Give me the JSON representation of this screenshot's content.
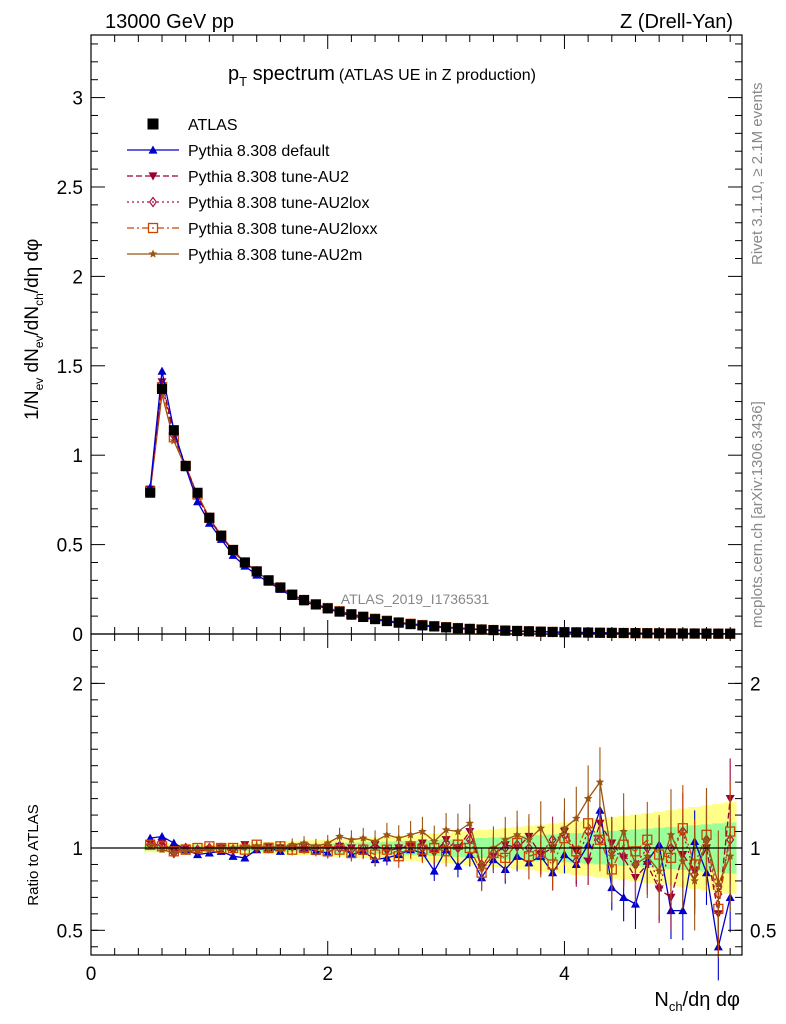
{
  "header": {
    "left": "13000 GeV pp",
    "right": "Z (Drell-Yan)"
  },
  "side_text": {
    "upper": "Rivet 3.1.10, ≥ 2.1M events",
    "lower": "mcplots.cern.ch [arXiv:1306.3436]"
  },
  "watermark": "ATLAS_2019_I1736531",
  "chart_data": [
    {
      "type": "line",
      "title_main": "p",
      "title_sub": "T",
      "title_rest": " spectrum",
      "title_paren": "(ATLAS UE in Z production)",
      "ylabel": "1/N_ev dN_ev/dN_ch/dη dφ",
      "xlim": [
        0,
        5.5
      ],
      "ylim": [
        0,
        3.35
      ],
      "yticks": [
        "0",
        "0.5",
        "1",
        "1.5",
        "2",
        "2.5",
        "3"
      ],
      "ytick_values": [
        0,
        0.5,
        1,
        1.5,
        2,
        2.5,
        3
      ],
      "legend": [
        {
          "label": "ATLAS",
          "color": "#000000",
          "marker": "square-filled",
          "dash": "none"
        },
        {
          "label": "Pythia 8.308 default",
          "color": "#0000cc",
          "marker": "triangle-up-filled",
          "dash": "solid"
        },
        {
          "label": "Pythia 8.308 tune-AU2",
          "color": "#990033",
          "marker": "triangle-down-filled",
          "dash": "dashed"
        },
        {
          "label": "Pythia 8.308 tune-AU2lox",
          "color": "#aa1144",
          "marker": "diamond-open",
          "dash": "dotted"
        },
        {
          "label": "Pythia 8.308 tune-AU2loxx",
          "color": "#cc4400",
          "marker": "square-open",
          "dash": "dashdot"
        },
        {
          "label": "Pythia 8.308 tune-AU2m",
          "color": "#995511",
          "marker": "star",
          "dash": "solid"
        }
      ],
      "x": [
        0.5,
        0.6,
        0.7,
        0.8,
        0.9,
        1.0,
        1.1,
        1.2,
        1.3,
        1.4,
        1.5,
        1.6,
        1.7,
        1.8,
        1.9,
        2.0,
        2.1,
        2.2,
        2.3,
        2.4,
        2.5,
        2.6,
        2.7,
        2.8,
        2.9,
        3.0,
        3.1,
        3.2,
        3.3,
        3.4,
        3.5,
        3.6,
        3.7,
        3.8,
        3.9,
        4.0,
        4.1,
        4.2,
        4.3,
        4.4,
        4.5,
        4.6,
        4.7,
        4.8,
        4.9,
        5.0,
        5.1,
        5.2,
        5.3,
        5.4
      ],
      "series": [
        {
          "name": "ATLAS",
          "values": [
            0.79,
            1.37,
            1.14,
            0.94,
            0.79,
            0.65,
            0.55,
            0.47,
            0.4,
            0.35,
            0.3,
            0.26,
            0.22,
            0.19,
            0.165,
            0.143,
            0.125,
            0.109,
            0.095,
            0.083,
            0.072,
            0.063,
            0.055,
            0.048,
            0.042,
            0.037,
            0.032,
            0.028,
            0.025,
            0.022,
            0.019,
            0.017,
            0.015,
            0.013,
            0.0115,
            0.01,
            0.009,
            0.008,
            0.007,
            0.0062,
            0.0055,
            0.0048,
            0.0043,
            0.0038,
            0.0033,
            0.0029,
            0.0026,
            0.0023,
            0.002,
            0.0018
          ]
        },
        {
          "name": "Pythia 8.308 default",
          "values": [
            0.82,
            1.47,
            1.14,
            0.93,
            0.74,
            0.62,
            0.53,
            0.44,
            0.38,
            0.33,
            0.29,
            0.25,
            0.21,
            0.18,
            0.16,
            0.14,
            0.12,
            0.1,
            0.09,
            0.08,
            0.07,
            0.06,
            0.053,
            0.046,
            0.04,
            0.035,
            0.031,
            0.027,
            0.024,
            0.021,
            0.018,
            0.016,
            0.014,
            0.012,
            0.011,
            0.0095,
            0.0085,
            0.0075,
            0.0066,
            0.0058,
            0.0051,
            0.0045,
            0.004,
            0.0035,
            0.0031,
            0.0027,
            0.0024,
            0.0021,
            0.0019,
            0.0017
          ]
        },
        {
          "name": "Pythia 8.308 tune-AU2",
          "values": [
            0.81,
            1.41,
            1.12,
            0.94,
            0.77,
            0.64,
            0.55,
            0.46,
            0.4,
            0.35,
            0.3,
            0.26,
            0.22,
            0.19,
            0.165,
            0.144,
            0.126,
            0.11,
            0.096,
            0.084,
            0.073,
            0.064,
            0.056,
            0.049,
            0.043,
            0.038,
            0.033,
            0.029,
            0.025,
            0.022,
            0.019,
            0.017,
            0.015,
            0.013,
            0.0115,
            0.01,
            0.009,
            0.008,
            0.007,
            0.0062,
            0.0055,
            0.0048,
            0.0043,
            0.0038,
            0.0033,
            0.0029,
            0.0026,
            0.0023,
            0.002,
            0.0018
          ]
        },
        {
          "name": "Pythia 8.308 tune-AU2lox",
          "values": [
            0.81,
            1.4,
            1.11,
            0.94,
            0.77,
            0.65,
            0.55,
            0.46,
            0.4,
            0.35,
            0.3,
            0.26,
            0.22,
            0.19,
            0.165,
            0.144,
            0.126,
            0.11,
            0.096,
            0.084,
            0.073,
            0.064,
            0.056,
            0.049,
            0.043,
            0.038,
            0.033,
            0.029,
            0.025,
            0.022,
            0.019,
            0.017,
            0.015,
            0.013,
            0.0115,
            0.01,
            0.009,
            0.008,
            0.007,
            0.0062,
            0.0055,
            0.0048,
            0.0043,
            0.0038,
            0.0033,
            0.0029,
            0.0026,
            0.0023,
            0.002,
            0.0018
          ]
        },
        {
          "name": "Pythia 8.308 tune-AU2loxx",
          "values": [
            0.8,
            1.38,
            1.1,
            0.94,
            0.78,
            0.65,
            0.55,
            0.47,
            0.4,
            0.35,
            0.3,
            0.26,
            0.22,
            0.19,
            0.166,
            0.145,
            0.127,
            0.111,
            0.097,
            0.085,
            0.074,
            0.065,
            0.057,
            0.05,
            0.044,
            0.038,
            0.033,
            0.029,
            0.025,
            0.022,
            0.019,
            0.017,
            0.015,
            0.013,
            0.0115,
            0.01,
            0.009,
            0.008,
            0.007,
            0.0062,
            0.0055,
            0.0048,
            0.0043,
            0.0038,
            0.0033,
            0.0029,
            0.0026,
            0.0023,
            0.002,
            0.0018
          ]
        },
        {
          "name": "Pythia 8.308 tune-AU2m",
          "values": [
            0.8,
            1.34,
            1.08,
            0.93,
            0.78,
            0.65,
            0.55,
            0.47,
            0.4,
            0.35,
            0.3,
            0.26,
            0.22,
            0.19,
            0.167,
            0.146,
            0.128,
            0.112,
            0.098,
            0.086,
            0.075,
            0.066,
            0.058,
            0.051,
            0.045,
            0.039,
            0.034,
            0.03,
            0.026,
            0.023,
            0.02,
            0.018,
            0.016,
            0.014,
            0.012,
            0.0105,
            0.0093,
            0.0083,
            0.0073,
            0.0064,
            0.0056,
            0.0049,
            0.0044,
            0.0039,
            0.0034,
            0.003,
            0.0027,
            0.0024,
            0.0021,
            0.0019
          ]
        }
      ]
    },
    {
      "type": "line",
      "ylabel": "Ratio to ATLAS",
      "xlabel": "N_ch/dη dφ",
      "xlim": [
        0,
        5.5
      ],
      "ylim": [
        0.35,
        2.3
      ],
      "xticks": [
        "0",
        "2",
        "4"
      ],
      "xtick_values": [
        0,
        2,
        4
      ],
      "yticks": [
        "0.5",
        "1",
        "2"
      ],
      "ytick_values": [
        0.5,
        1,
        2
      ],
      "band_colors": {
        "inner": "#99ff99",
        "outer": "#ffff88"
      },
      "x": [
        0.5,
        0.6,
        0.7,
        0.8,
        0.9,
        1.0,
        1.1,
        1.2,
        1.3,
        1.4,
        1.5,
        1.6,
        1.7,
        1.8,
        1.9,
        2.0,
        2.1,
        2.2,
        2.3,
        2.4,
        2.5,
        2.6,
        2.7,
        2.8,
        2.9,
        3.0,
        3.1,
        3.2,
        3.3,
        3.4,
        3.5,
        3.6,
        3.7,
        3.8,
        3.9,
        4.0,
        4.1,
        4.2,
        4.3,
        4.4,
        4.5,
        4.6,
        4.7,
        4.8,
        4.9,
        5.0,
        5.1,
        5.2,
        5.3,
        5.4
      ],
      "series": [
        {
          "name": "Pythia 8.308 default",
          "values": [
            1.06,
            1.07,
            1.03,
            0.99,
            0.96,
            0.97,
            0.98,
            0.95,
            0.94,
            0.99,
            1.0,
            0.98,
            1.01,
            1.0,
            0.98,
            0.97,
            1.02,
            0.96,
            0.98,
            0.93,
            0.94,
            0.96,
            0.99,
            0.97,
            0.86,
            0.99,
            0.89,
            0.96,
            0.82,
            0.93,
            0.87,
            0.95,
            0.91,
            0.95,
            0.85,
            0.96,
            0.9,
            1.02,
            1.23,
            0.76,
            0.7,
            0.66,
            0.92,
            1.02,
            0.62,
            0.62,
            1.04,
            0.85,
            0.4,
            0.7
          ]
        },
        {
          "name": "Pythia 8.308 tune-AU2",
          "values": [
            1.03,
            1.03,
            0.98,
            1.0,
            0.98,
            0.99,
            1.0,
            0.98,
            1.02,
            1.0,
            1.01,
            1.0,
            1.0,
            1.01,
            1.0,
            1.0,
            1.01,
            1.0,
            0.98,
            1.02,
            0.98,
            1.0,
            1.01,
            1.03,
            0.97,
            1.05,
            1.0,
            1.1,
            0.88,
            0.95,
            1.02,
            1.0,
            1.07,
            0.96,
            1.0,
            1.1,
            0.98,
            0.92,
            1.15,
            1.03,
            0.94,
            0.82,
            0.9,
            0.75,
            0.7,
            0.96,
            0.86,
            1.0,
            0.6,
            1.3
          ]
        },
        {
          "name": "Pythia 8.308 tune-AU2lox",
          "values": [
            1.02,
            1.02,
            0.97,
            1.0,
            0.99,
            1.0,
            1.0,
            0.99,
            1.01,
            1.0,
            1.0,
            1.0,
            1.01,
            1.0,
            1.0,
            1.01,
            1.0,
            0.99,
            1.0,
            1.01,
            0.99,
            1.0,
            1.02,
            1.0,
            0.98,
            1.03,
            1.0,
            1.05,
            0.9,
            0.97,
            1.0,
            1.02,
            1.0,
            0.97,
            1.05,
            1.08,
            0.92,
            1.1,
            1.05,
            0.98,
            0.95,
            0.9,
            1.0,
            0.76,
            1.0,
            1.1,
            0.84,
            1.05,
            0.72,
            1.05
          ]
        },
        {
          "name": "Pythia 8.308 tune-AU2loxx",
          "values": [
            1.02,
            1.01,
            0.98,
            0.99,
            1.0,
            1.01,
            1.0,
            1.0,
            0.99,
            1.02,
            1.0,
            1.01,
            0.99,
            1.0,
            0.99,
            0.98,
            0.99,
            0.97,
            0.99,
            0.96,
            0.99,
            0.95,
            1.01,
            0.99,
            1.0,
            0.98,
            1.02,
            1.0,
            0.85,
            0.97,
            0.94,
            1.03,
            0.95,
            0.97,
            0.9,
            1.06,
            0.98,
            1.15,
            1.05,
            0.87,
            1.02,
            0.98,
            1.05,
            0.96,
            0.94,
            1.12,
            0.9,
            1.08,
            0.63,
            1.1
          ]
        },
        {
          "name": "Pythia 8.308 tune-AU2m",
          "values": [
            1.02,
            0.99,
            0.97,
            0.98,
            0.99,
            0.99,
            1.0,
            1.0,
            1.01,
            1.01,
            1.0,
            1.0,
            1.02,
            1.03,
            1.01,
            1.03,
            1.07,
            1.05,
            1.06,
            1.04,
            1.08,
            1.06,
            1.08,
            1.1,
            1.04,
            1.11,
            1.1,
            1.15,
            0.88,
            1.0,
            1.05,
            1.08,
            1.05,
            1.12,
            0.99,
            1.12,
            1.18,
            1.3,
            1.4,
            0.95,
            1.1,
            0.9,
            0.95,
            0.86,
            1.08,
            0.92,
            0.8,
            1.05,
            0.78,
            0.95
          ]
        }
      ]
    }
  ]
}
